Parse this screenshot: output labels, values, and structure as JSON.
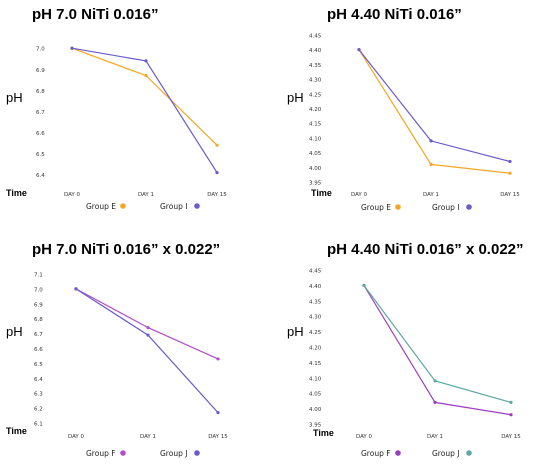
{
  "chart_data": [
    {
      "type": "line",
      "title": "pH 7.0 NiTi 0.016”",
      "xlabel": "Time",
      "ylabel": "pH",
      "categories": [
        "DAY 0",
        "DAY 1",
        "DAY 15"
      ],
      "yticks": [
        "7.0",
        "6.9",
        "6.8",
        "6.7",
        "6.6",
        "6.5",
        "6.4"
      ],
      "ylim": [
        6.37,
        7.02
      ],
      "grid": false,
      "legend": "bottom",
      "series": [
        {
          "name": "Group E",
          "color": "#f5a623",
          "values": [
            7.0,
            6.87,
            6.54
          ]
        },
        {
          "name": "Group I",
          "color": "#6a5acd",
          "values": [
            7.0,
            6.94,
            6.41
          ]
        }
      ]
    },
    {
      "type": "line",
      "title": "pH 4.40 NiTi 0.016”",
      "xlabel": "Time",
      "ylabel": "pH",
      "categories": [
        "DAY 0",
        "DAY 1",
        "DAY 15"
      ],
      "yticks": [
        "4.45",
        "4.40",
        "4.35",
        "4.30",
        "4.25",
        "4.20",
        "4.15",
        "4.10",
        "4.05",
        "4.00",
        "3.95"
      ],
      "ylim": [
        3.94,
        4.46
      ],
      "grid": false,
      "legend": "bottom",
      "series": [
        {
          "name": "Group E",
          "color": "#f5a623",
          "values": [
            4.4,
            4.01,
            3.98
          ]
        },
        {
          "name": "Group I",
          "color": "#6a5acd",
          "values": [
            4.4,
            4.09,
            4.02
          ]
        }
      ]
    },
    {
      "type": "line",
      "title": "pH 7.0 NiTi 0.016” x 0.022”",
      "xlabel": "Time",
      "ylabel": "pH",
      "categories": [
        "DAY 0",
        "DAY 1",
        "DAY 15"
      ],
      "yticks": [
        "7.1",
        "7.0",
        "6.9",
        "6.8",
        "6.7",
        "6.6",
        "6.5",
        "6.4",
        "6.3",
        "6.2",
        "6.1"
      ],
      "ylim": [
        6.08,
        7.12
      ],
      "grid": false,
      "legend": "bottom",
      "series": [
        {
          "name": "Group F",
          "color": "#b04fc7",
          "values": [
            7.0,
            6.74,
            6.53
          ]
        },
        {
          "name": "Group J",
          "color": "#6a5acd",
          "values": [
            7.0,
            6.69,
            6.17
          ]
        }
      ]
    },
    {
      "type": "line",
      "title": "pH 4.40 NiTi 0.016” x 0.022”",
      "xlabel": "Time",
      "ylabel": "pH",
      "categories": [
        "DAY 0",
        "DAY 1",
        "DAY 15"
      ],
      "yticks": [
        "4.45",
        "4.40",
        "4.35",
        "4.30",
        "4.25",
        "4.20",
        "4.15",
        "4.10",
        "4.05",
        "4.00",
        "3.95"
      ],
      "ylim": [
        3.94,
        4.46
      ],
      "grid": false,
      "legend": "bottom",
      "series": [
        {
          "name": "Group F",
          "color": "#9b3fbf",
          "values": [
            4.4,
            4.02,
            3.98
          ]
        },
        {
          "name": "Group J",
          "color": "#5fa8a3",
          "values": [
            4.4,
            4.09,
            4.02
          ]
        }
      ]
    }
  ]
}
